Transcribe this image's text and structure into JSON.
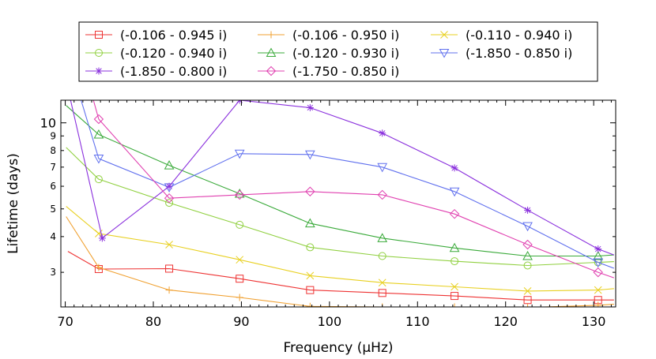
{
  "chart_data": {
    "type": "line",
    "xlabel": "Frequency (μHz)",
    "ylabel": "Lifetime (days)",
    "xlim": [
      69.5,
      132.5
    ],
    "ylim": [
      2.27,
      12.0
    ],
    "yscale": "log",
    "xticks": [
      70,
      80,
      90,
      100,
      110,
      120,
      130
    ],
    "yticks": [
      3,
      4,
      5,
      6,
      7,
      8,
      9,
      10
    ],
    "ytick_labels": [
      "3",
      "4",
      "5",
      "6",
      "7",
      "8",
      "9",
      "10"
    ],
    "grid": false,
    "legend_position": "top",
    "series": [
      {
        "name": "(-0.106 - 0.945 i)",
        "color": "#ee3333",
        "marker": "square",
        "points": [
          [
            70.3,
            3.55
          ],
          [
            73.8,
            3.08
          ],
          [
            81.8,
            3.09
          ],
          [
            89.8,
            2.85
          ],
          [
            97.8,
            2.6
          ],
          [
            106,
            2.54
          ],
          [
            114.2,
            2.48
          ],
          [
            122.5,
            2.4
          ],
          [
            130.5,
            2.4
          ],
          [
            132.3,
            2.4
          ]
        ]
      },
      {
        "name": "(-0.106 - 0.950 i)",
        "color": "#f0a030",
        "marker": "plus",
        "points": [
          [
            70.1,
            4.7
          ],
          [
            73.8,
            3.12
          ],
          [
            81.8,
            2.6
          ],
          [
            89.8,
            2.45
          ],
          [
            97.8,
            2.28
          ],
          [
            106,
            2.27
          ],
          [
            114.2,
            2.27
          ],
          [
            122.5,
            2.26
          ],
          [
            130.5,
            2.3
          ],
          [
            132.3,
            2.32
          ]
        ]
      },
      {
        "name": "(-0.110 - 0.940 i)",
        "color": "#e8d020",
        "marker": "x",
        "points": [
          [
            70.1,
            5.1
          ],
          [
            73.8,
            4.1
          ],
          [
            81.8,
            3.75
          ],
          [
            89.8,
            3.32
          ],
          [
            97.8,
            2.92
          ],
          [
            106,
            2.76
          ],
          [
            114.2,
            2.67
          ],
          [
            122.5,
            2.58
          ],
          [
            130.5,
            2.6
          ],
          [
            132.3,
            2.63
          ]
        ]
      },
      {
        "name": "(-0.120 - 0.940 i)",
        "color": "#90d040",
        "marker": "circle",
        "points": [
          [
            70.1,
            8.2
          ],
          [
            73.8,
            6.35
          ],
          [
            81.8,
            5.25
          ],
          [
            89.8,
            4.4
          ],
          [
            97.8,
            3.67
          ],
          [
            106,
            3.42
          ],
          [
            114.2,
            3.28
          ],
          [
            122.5,
            3.17
          ],
          [
            130.5,
            3.25
          ],
          [
            132.3,
            3.27
          ]
        ]
      },
      {
        "name": "(-0.120 - 0.930 i)",
        "color": "#3aaa3a",
        "marker": "triangle-up",
        "points": [
          [
            70.1,
            11.5
          ],
          [
            73.8,
            9.1
          ],
          [
            81.8,
            7.1
          ],
          [
            89.8,
            5.65
          ],
          [
            97.8,
            4.45
          ],
          [
            106,
            3.95
          ],
          [
            114.2,
            3.65
          ],
          [
            122.5,
            3.42
          ],
          [
            130.5,
            3.42
          ],
          [
            132.3,
            3.45
          ]
        ]
      },
      {
        "name": "(-1.850 - 0.850 i)",
        "color": "#6070ee",
        "marker": "triangle-down",
        "points": [
          [
            71.8,
            12.0
          ],
          [
            73.8,
            7.5
          ],
          [
            81.8,
            5.95
          ],
          [
            89.8,
            7.8
          ],
          [
            97.8,
            7.75
          ],
          [
            106,
            7.0
          ],
          [
            114.2,
            5.75
          ],
          [
            122.5,
            4.35
          ],
          [
            130.5,
            3.25
          ],
          [
            132.3,
            3.1
          ]
        ]
      },
      {
        "name": "(-1.850 - 0.800 i)",
        "color": "#8a30dd",
        "marker": "asterisk",
        "points": [
          [
            70.6,
            12.0
          ],
          [
            74.2,
            3.95
          ],
          [
            81.8,
            6.0
          ],
          [
            89.8,
            12.0
          ],
          [
            97.8,
            11.3
          ],
          [
            106,
            9.2
          ],
          [
            114.2,
            6.95
          ],
          [
            122.5,
            4.95
          ],
          [
            130.5,
            3.62
          ],
          [
            132.3,
            3.45
          ]
        ]
      },
      {
        "name": "(-1.750 - 0.850 i)",
        "color": "#e040b0",
        "marker": "diamond",
        "points": [
          [
            73.2,
            12.0
          ],
          [
            73.8,
            10.3
          ],
          [
            81.8,
            5.45
          ],
          [
            89.8,
            5.6
          ],
          [
            97.8,
            5.75
          ],
          [
            106,
            5.6
          ],
          [
            114.2,
            4.8
          ],
          [
            122.5,
            3.75
          ],
          [
            130.5,
            3.0
          ],
          [
            132.3,
            2.87
          ]
        ]
      }
    ]
  }
}
